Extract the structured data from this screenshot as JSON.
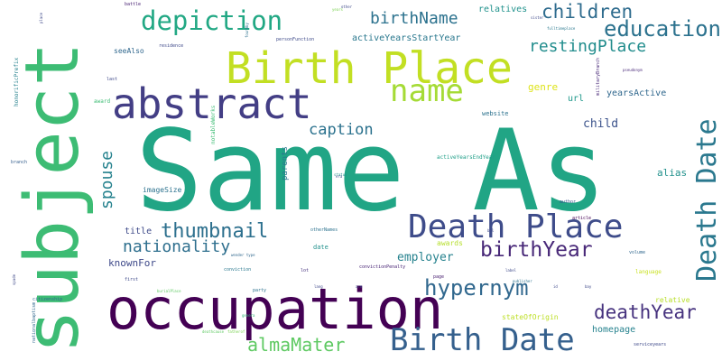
{
  "title": "",
  "words": [
    {
      "id": "same-as",
      "text": "Same As",
      "color": "#21a585"
    },
    {
      "id": "subject",
      "text": "subject",
      "color": "#3dbc74"
    },
    {
      "id": "occupation",
      "text": "occupation",
      "color": "#440154"
    },
    {
      "id": "birth-place",
      "text": "Birth Place",
      "color": "#c2df23"
    },
    {
      "id": "abstract",
      "text": "abstract",
      "color": "#433e85"
    },
    {
      "id": "death-place",
      "text": "Death Place",
      "color": "#3e4c8a"
    },
    {
      "id": "birth-date",
      "text": "Birth Date",
      "color": "#35608d"
    },
    {
      "id": "death-date",
      "text": "Death Date",
      "color": "#2a788e"
    },
    {
      "id": "name",
      "text": "name",
      "color": "#a5db36"
    },
    {
      "id": "depiction",
      "text": "depiction",
      "color": "#22a884"
    },
    {
      "id": "education",
      "text": "education",
      "color": "#2c728e"
    },
    {
      "id": "hypernym",
      "text": "hypernym",
      "color": "#31688e"
    },
    {
      "id": "birthyear",
      "text": "birthYear",
      "color": "#482878"
    },
    {
      "id": "deathyear",
      "text": "deathYear",
      "color": "#46327e"
    },
    {
      "id": "thumbnail",
      "text": "thumbnail",
      "color": "#2d708e"
    },
    {
      "id": "children",
      "text": "children",
      "color": "#2f6c8e"
    },
    {
      "id": "restingplace",
      "text": "restingPlace",
      "color": "#228d8d"
    },
    {
      "id": "almamater",
      "text": "almaMater",
      "color": "#5ec962"
    },
    {
      "id": "birthname",
      "text": "birthName",
      "color": "#2c728e"
    },
    {
      "id": "nationality",
      "text": "nationality",
      "color": "#2e6f8e"
    },
    {
      "id": "spouse",
      "text": "spouse",
      "color": "#26828e"
    },
    {
      "id": "caption",
      "text": "caption",
      "color": "#2c728e"
    },
    {
      "id": "employer",
      "text": "employer",
      "color": "#26828e"
    },
    {
      "id": "child",
      "text": "child",
      "color": "#3b528b"
    },
    {
      "id": "knownfor",
      "text": "knownFor",
      "color": "#3e4989"
    },
    {
      "id": "alias",
      "text": "alias",
      "color": "#21918c"
    },
    {
      "id": "genre",
      "text": "genre",
      "color": "#dde318"
    },
    {
      "id": "relatives",
      "text": "relatives",
      "color": "#20928c"
    },
    {
      "id": "activeyearsstartyear",
      "text": "activeYearsStartYear",
      "color": "#2a788e"
    },
    {
      "id": "yearsactive",
      "text": "yearsActive",
      "color": "#31688e"
    },
    {
      "id": "url",
      "text": "url",
      "color": "#1f988b"
    },
    {
      "id": "seealso",
      "text": "seeAlso",
      "color": "#31688e"
    },
    {
      "id": "awards",
      "text": "awards",
      "color": "#b5de2b"
    },
    {
      "id": "homepage",
      "text": "homepage",
      "color": "#26828e"
    },
    {
      "id": "stateoforigin",
      "text": "stateOfOrigin",
      "color": "#bddf26"
    },
    {
      "id": "relative",
      "text": "relative",
      "color": "#b8de29"
    },
    {
      "id": "title",
      "text": "title",
      "color": "#3e4a89"
    },
    {
      "id": "parents",
      "text": "parents",
      "color": "#2a788e"
    },
    {
      "id": "imagesize",
      "text": "imageSize",
      "color": "#2c728e"
    },
    {
      "id": "website",
      "text": "website",
      "color": "#2c728e"
    },
    {
      "id": "award",
      "text": "award",
      "color": "#3dbc74"
    },
    {
      "id": "date",
      "text": "date",
      "color": "#21918c"
    },
    {
      "id": "language",
      "text": "language",
      "color": "#c8e020"
    },
    {
      "id": "residence",
      "text": "residence",
      "color": "#3e4989"
    },
    {
      "id": "personfunction",
      "text": "personFunction",
      "color": "#3e4a89"
    },
    {
      "id": "activeyearsendyear",
      "text": "activeYearsEndYear",
      "color": "#1f9f88"
    },
    {
      "id": "othernames",
      "text": "otherNames",
      "color": "#2c728e"
    },
    {
      "id": "notableworks",
      "text": "notableWorks",
      "color": "#3dbc74"
    },
    {
      "id": "honorificprefix",
      "text": "honorificPrefix",
      "color": "#26828e"
    },
    {
      "id": "conviction",
      "text": "conviction",
      "color": "#2a788e"
    },
    {
      "id": "convictionpenalty",
      "text": "convictionPenalty",
      "color": "#482475"
    },
    {
      "id": "party",
      "text": "party",
      "color": "#2c728e"
    },
    {
      "id": "author",
      "text": "author",
      "color": "#3b528b"
    },
    {
      "id": "article",
      "text": "article",
      "color": "#440154"
    },
    {
      "id": "volume",
      "text": "volume",
      "color": "#31688e"
    },
    {
      "id": "servicesyears",
      "text": "serviceyears",
      "color": "#3e4989"
    },
    {
      "id": "citizenship",
      "text": "citizenship",
      "color": "#31688e"
    },
    {
      "id": "page",
      "text": "page",
      "color": "#481f70"
    },
    {
      "id": "first",
      "text": "first",
      "color": "#3e4989"
    },
    {
      "id": "last",
      "text": "last",
      "color": "#3e4989"
    },
    {
      "id": "battle",
      "text": "battle",
      "color": "#482173"
    },
    {
      "id": "nationalbaptism",
      "text": "nationalbaptism",
      "color": "#31688e"
    },
    {
      "id": "branch",
      "text": "branch",
      "color": "#355f8d"
    },
    {
      "id": "lot",
      "text": "lot",
      "color": "#46327e"
    },
    {
      "id": "years",
      "text": "years",
      "color": "#7ad151"
    },
    {
      "id": "fatherof",
      "text": "fatherof",
      "color": "#7ad151"
    },
    {
      "id": "sister",
      "text": "sister",
      "color": "#3e4989"
    },
    {
      "id": "militarybranch",
      "text": "militaryBranch",
      "color": "#482878"
    },
    {
      "id": "burialplace",
      "text": "burialPlace",
      "color": "#5ec962"
    },
    {
      "id": "genera",
      "text": "genera",
      "color": "#35b779"
    },
    {
      "id": "deathcause",
      "text": "deathcause",
      "color": "#5ec962"
    },
    {
      "id": "publisher",
      "text": "publisher",
      "color": "#2c728e"
    },
    {
      "id": "label",
      "text": "label",
      "color": "#3e4989"
    },
    {
      "id": "status",
      "text": "status",
      "color": "#21918c"
    },
    {
      "id": "wendertype",
      "text": "wender type",
      "color": "#31688e"
    },
    {
      "id": "fulltimeplace",
      "text": "fulltimeplace",
      "color": "#2a788e"
    },
    {
      "id": "pseudonym",
      "text": "pseudonym",
      "color": "#482878"
    },
    {
      "id": "bbl",
      "text": "bbl",
      "color": "#3e4989"
    },
    {
      "id": "other",
      "text": "other",
      "color": "#3e4989"
    },
    {
      "id": "lang",
      "text": "lang",
      "color": "#3e4989"
    },
    {
      "id": "id",
      "text": "id",
      "color": "#3e4989"
    },
    {
      "id": "foundby",
      "text": "foundby",
      "color": "#2c728e"
    },
    {
      "id": "era",
      "text": "era",
      "color": "#3e4989"
    },
    {
      "id": "spade",
      "text": "spade",
      "color": "#3e4989"
    },
    {
      "id": "place",
      "text": "place",
      "color": "#3e4989"
    },
    {
      "id": "bay",
      "text": "bay",
      "color": "#3e4989"
    },
    {
      "id": "arm",
      "text": "arm",
      "color": "#3e4989"
    }
  ]
}
